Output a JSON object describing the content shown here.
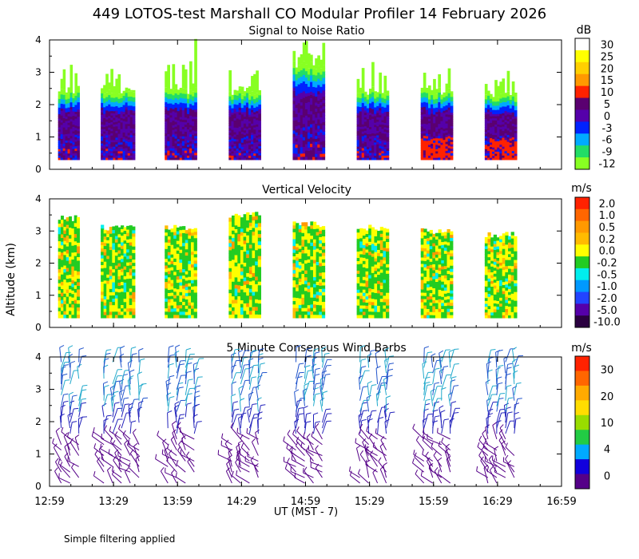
{
  "page": {
    "title": "449 LOTOS-test Marshall CO Modular Profiler 14 February 2026",
    "ylabel": "Altitude (km)",
    "xlabel": "UT  (MST - 7)",
    "footnote": "Simple filtering applied"
  },
  "chart_data": [
    {
      "type": "heatmap",
      "title": "Signal to Noise Ratio",
      "colorbar_unit": "dB",
      "colorbar_ticks": [
        "30",
        "25",
        "20",
        "15",
        "10",
        "5",
        "0",
        "-3",
        "-6",
        "-9",
        "-12"
      ],
      "colors": [
        "#ffffff",
        "#ffff00",
        "#ffd000",
        "#ff9900",
        "#ff2200",
        "#5a0070",
        "#5500aa",
        "#0022ff",
        "#00aaff",
        "#22dd66",
        "#88ff22"
      ],
      "ylim": [
        0,
        4
      ],
      "yticks": [
        "0",
        "1",
        "2",
        "3",
        "4"
      ],
      "x_tick_labels": [
        "12:59",
        "13:29",
        "13:59",
        "14:29",
        "14:59",
        "15:29",
        "15:59",
        "16:29",
        "16:59"
      ],
      "data_blocks": [
        {
          "start": "13:03",
          "end": "13:13",
          "top_km": 2.3
        },
        {
          "start": "13:23",
          "end": "13:39",
          "top_km": 2.3
        },
        {
          "start": "13:53",
          "end": "14:08",
          "top_km": 2.3
        },
        {
          "start": "14:23",
          "end": "14:38",
          "top_km": 2.3
        },
        {
          "start": "14:53",
          "end": "15:08",
          "top_km": 3.1
        },
        {
          "start": "15:23",
          "end": "15:38",
          "top_km": 2.3
        },
        {
          "start": "15:53",
          "end": "16:08",
          "top_km": 2.3
        },
        {
          "start": "16:23",
          "end": "16:38",
          "top_km": 2.2
        }
      ]
    },
    {
      "type": "heatmap",
      "title": "Vertical Velocity",
      "colorbar_unit": "m/s",
      "colorbar_ticks": [
        "2.0",
        "1.0",
        "0.5",
        "0.2",
        "0.0",
        "-0.2",
        "-0.5",
        "-1.0",
        "-2.0",
        "-5.0",
        "-10.0"
      ],
      "colors": [
        "#ff2200",
        "#ff6600",
        "#ff9900",
        "#ffbb00",
        "#ffff00",
        "#22cc22",
        "#00eeee",
        "#0099ff",
        "#2244ff",
        "#5500aa",
        "#2a0040"
      ],
      "ylim": [
        0,
        4
      ],
      "yticks": [
        "0",
        "1",
        "2",
        "3",
        "4"
      ],
      "x_tick_labels": [
        "12:59",
        "13:29",
        "13:59",
        "14:29",
        "14:59",
        "15:29",
        "15:59",
        "16:29",
        "16:59"
      ]
    },
    {
      "type": "scatter",
      "title": "5 Minute Consensus Wind Barbs",
      "colorbar_unit": "m/s",
      "colorbar_ticks": [
        "30",
        "20",
        "10",
        "4",
        "0"
      ],
      "colors": [
        "#ff2200",
        "#ff6600",
        "#ffaa00",
        "#ffdd00",
        "#99dd00",
        "#22cc44",
        "#00aaff",
        "#1100dd",
        "#550088"
      ],
      "ylim": [
        0,
        4
      ],
      "yticks": [
        "0",
        "1",
        "2",
        "3",
        "4"
      ],
      "x_tick_labels": [
        "12:59",
        "13:29",
        "13:59",
        "14:29",
        "14:59",
        "15:29",
        "15:59",
        "16:29",
        "16:59"
      ]
    }
  ]
}
